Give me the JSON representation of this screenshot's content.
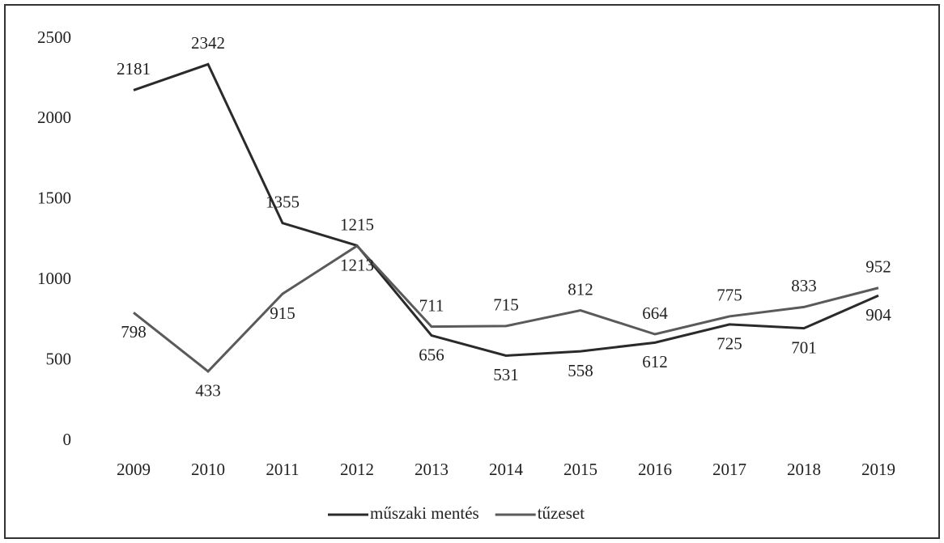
{
  "chart_data": {
    "type": "line",
    "categories": [
      "2009",
      "2010",
      "2011",
      "2012",
      "2013",
      "2014",
      "2015",
      "2016",
      "2017",
      "2018",
      "2019"
    ],
    "series": [
      {
        "name": "műszaki mentés",
        "color": "#2a2a2a",
        "values": [
          2181,
          2342,
          1355,
          1215,
          656,
          531,
          558,
          612,
          725,
          701,
          904
        ]
      },
      {
        "name": "tűzeset",
        "color": "#5a5a5a",
        "values": [
          798,
          433,
          915,
          1213,
          711,
          715,
          812,
          664,
          775,
          833,
          952
        ]
      }
    ],
    "ylim": [
      0,
      2500
    ],
    "yticks": [
      0,
      500,
      1000,
      1500,
      2000,
      2500
    ],
    "grid": false,
    "legend": "bottom"
  }
}
